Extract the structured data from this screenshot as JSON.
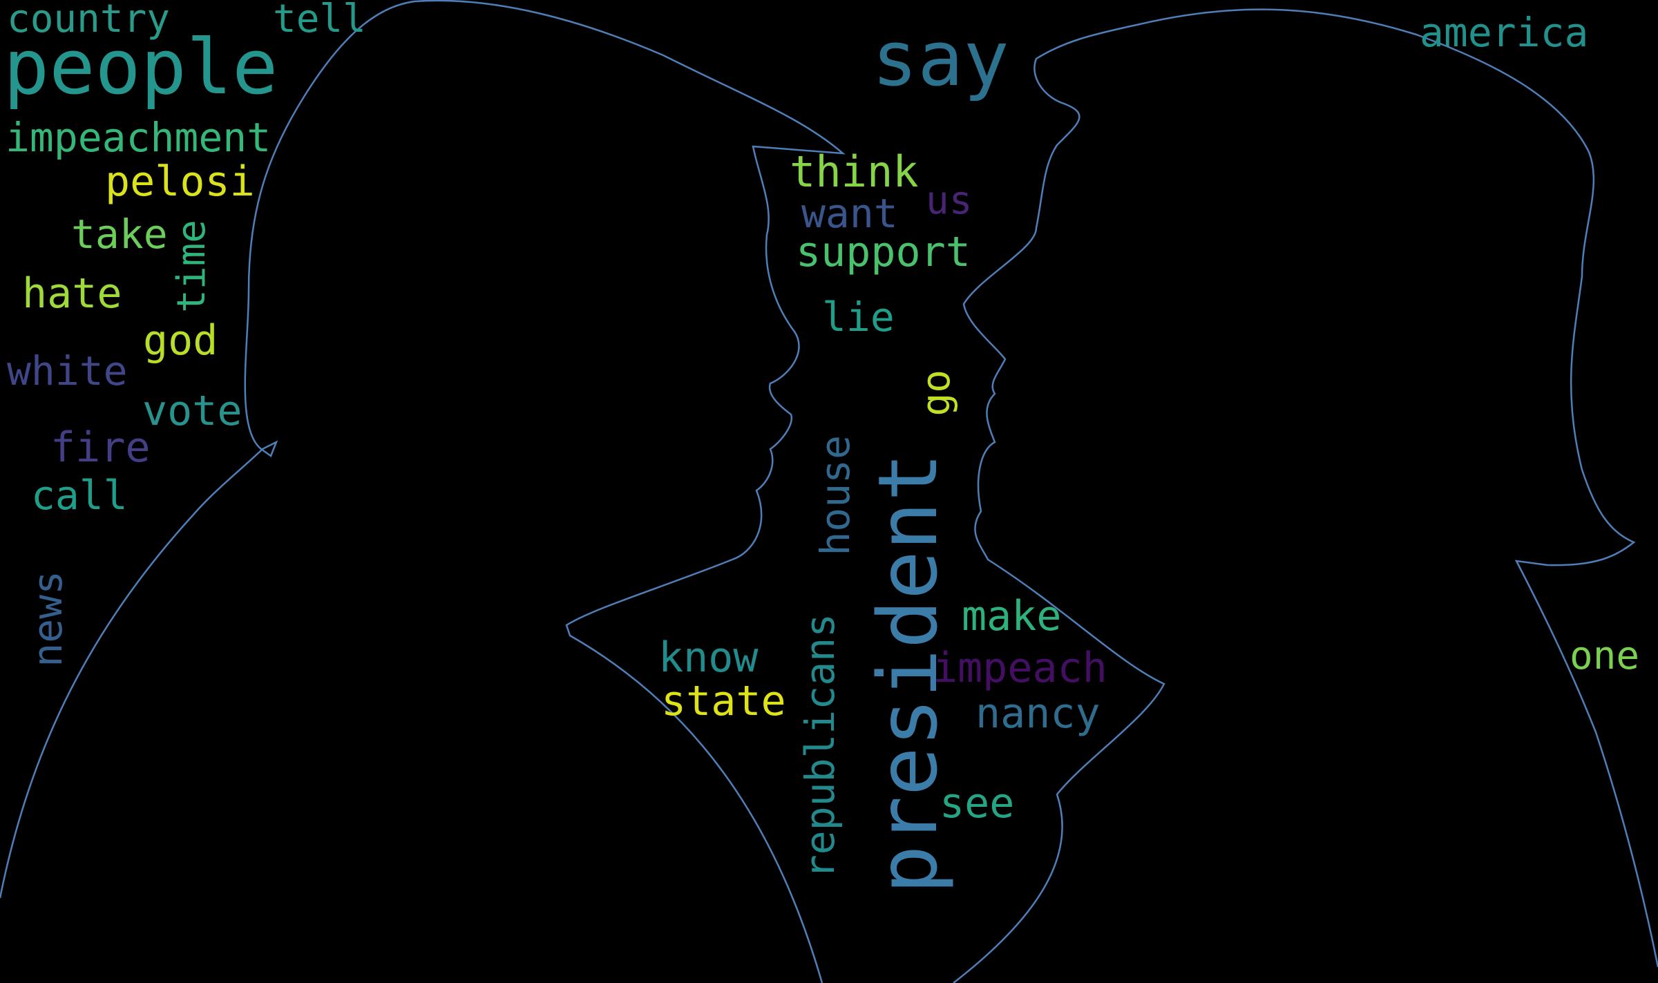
{
  "wordcloud": {
    "outline_color": "#4f7fb8",
    "background": "#000000",
    "words": [
      {
        "text": "country",
        "color": "#2a9a8a"
      },
      {
        "text": "tell",
        "color": "#249a8b"
      },
      {
        "text": "people",
        "color": "#24968d"
      },
      {
        "text": "impeachment",
        "color": "#35b779"
      },
      {
        "text": "pelosi",
        "color": "#d9e21b"
      },
      {
        "text": "take",
        "color": "#6ccd5a"
      },
      {
        "text": "time",
        "color": "#2fb47c"
      },
      {
        "text": "hate",
        "color": "#9fda3a"
      },
      {
        "text": "god",
        "color": "#b8de29"
      },
      {
        "text": "white",
        "color": "#404688"
      },
      {
        "text": "vote",
        "color": "#2a928c"
      },
      {
        "text": "fire",
        "color": "#433e85"
      },
      {
        "text": "call",
        "color": "#1f9e89"
      },
      {
        "text": "news",
        "color": "#355f8d"
      },
      {
        "text": "say",
        "color": "#2c728e"
      },
      {
        "text": "america",
        "color": "#21918c"
      },
      {
        "text": "think",
        "color": "#86d549"
      },
      {
        "text": "want",
        "color": "#39558c"
      },
      {
        "text": "us",
        "color": "#482475"
      },
      {
        "text": "support",
        "color": "#4ac16d"
      },
      {
        "text": "lie",
        "color": "#1f9e89"
      },
      {
        "text": "go",
        "color": "#c2df23"
      },
      {
        "text": "house",
        "color": "#31688e"
      },
      {
        "text": "president",
        "color": "#3b7ca8"
      },
      {
        "text": "make",
        "color": "#2db27d"
      },
      {
        "text": "know",
        "color": "#228c8d"
      },
      {
        "text": "impeach",
        "color": "#440f63"
      },
      {
        "text": "state",
        "color": "#dde318"
      },
      {
        "text": "republicans",
        "color": "#228a8d"
      },
      {
        "text": "nancy",
        "color": "#2f6c8e"
      },
      {
        "text": "see",
        "color": "#25a584"
      },
      {
        "text": "one",
        "color": "#7ad151"
      }
    ]
  }
}
